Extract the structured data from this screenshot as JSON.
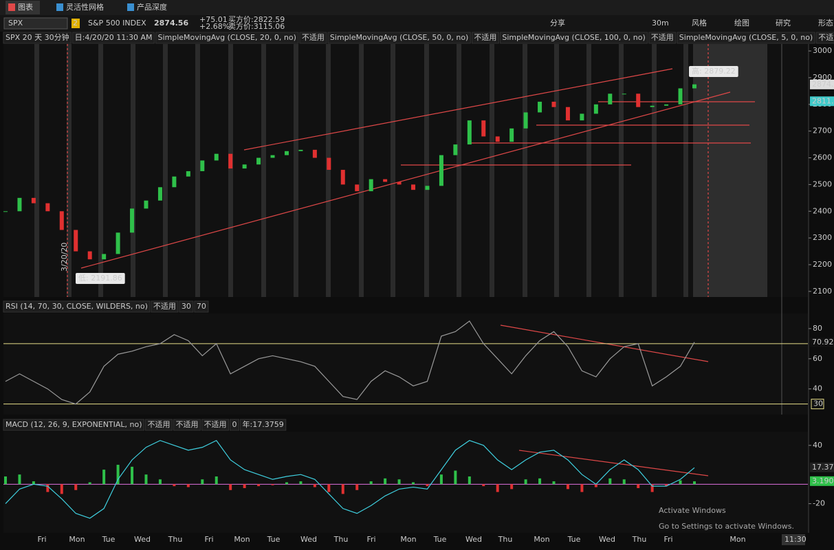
{
  "tabs": [
    "图表",
    "灵活性网格",
    "产品深度"
  ],
  "symbol_bar": {
    "symbol": "SPX",
    "link": "2",
    "name": "S&P 500 INDEX",
    "last": "2874.56",
    "change": "+75.01",
    "change_pct": "+2.68%",
    "bid": "买方价:2822.59",
    "ask": "卖方价:3115.06"
  },
  "toolbar": [
    "分享",
    "30m",
    "风格",
    "绘图",
    "研究",
    "形态"
  ],
  "price_panel": {
    "header": [
      "SPX 20 天 30分钟",
      "日:4/20/20 11:30 AM"
    ],
    "studies": [
      {
        "label": "SimpleMovingAvg (CLOSE, 20, 0, no)",
        "value": "不适用",
        "color": "#5bd3e6"
      },
      {
        "label": "SimpleMovingAvg (CLOSE, 50, 0, no)",
        "value": "不适用",
        "color": "#3fc9c9"
      },
      {
        "label": "SimpleMovingAvg (CLOSE, 100, 0, no)",
        "value": "不适用",
        "color": "#ffffff"
      },
      {
        "label": "SimpleMovingAvg (CLOSE, 5, 0, no)",
        "value": "不适用",
        "color": "#3fc9c9"
      }
    ],
    "ylim": [
      2079,
      3026
    ],
    "yticks": [
      2100,
      2200,
      2300,
      2400,
      2500,
      2600,
      2700,
      2800,
      2900,
      3000
    ],
    "closes": [
      2400,
      2450,
      2430,
      2400,
      2330,
      2250,
      2220,
      2240,
      2320,
      2410,
      2440,
      2490,
      2530,
      2550,
      2590,
      2615,
      2560,
      2575,
      2600,
      2610,
      2625,
      2630,
      2600,
      2555,
      2500,
      2475,
      2520,
      2510,
      2500,
      2480,
      2495,
      2610,
      2650,
      2740,
      2680,
      2660,
      2710,
      2770,
      2810,
      2790,
      2740,
      2765,
      2800,
      2840,
      2840,
      2790,
      2795,
      2800,
      2860,
      2875
    ],
    "last_marker": 2874.56,
    "sma_marker": 2811.7,
    "high_label": "高: 2879.22",
    "low_label": "低: 2191.86",
    "date_mark": "3/20/20"
  },
  "rsi_panel": {
    "header": "RSI (14, 70, 30, CLOSE, WILDERS, no)",
    "tags": [
      {
        "text": "不适用",
        "color": "#3fd0e0"
      },
      {
        "text": "30",
        "color": "#f0e68c"
      },
      {
        "text": "70",
        "color": "#f0e68c"
      }
    ],
    "ylim": [
      23,
      90
    ],
    "yticks": [
      40,
      60,
      80
    ],
    "levels": [
      30,
      70
    ],
    "values": [
      45,
      50,
      45,
      40,
      33,
      30,
      38,
      55,
      63,
      65,
      68,
      70,
      76,
      72,
      62,
      70,
      50,
      55,
      60,
      62,
      60,
      58,
      55,
      45,
      35,
      33,
      45,
      52,
      48,
      42,
      45,
      75,
      78,
      85,
      70,
      60,
      50,
      62,
      72,
      78,
      68,
      52,
      48,
      60,
      68,
      70,
      42,
      48,
      55,
      71
    ],
    "last_marker": 70.92
  },
  "macd_panel": {
    "header": "MACD (12, 26, 9, EXPONENTIAL, no)",
    "tags": [
      {
        "text": "不适用",
        "color": "#3fd0e0"
      },
      {
        "text": "不适用",
        "color": "#f0e68c"
      },
      {
        "text": "不适用",
        "color": "#ff6060"
      },
      {
        "text": "0",
        "color": "#e070e0"
      },
      {
        "text": "年:17.3759",
        "color": "#cccccc"
      }
    ],
    "ylim": [
      -50,
      54
    ],
    "yticks": [
      -20,
      40
    ],
    "values": [
      -20,
      -5,
      0,
      -2,
      -15,
      -30,
      -35,
      -25,
      5,
      25,
      38,
      45,
      40,
      35,
      38,
      45,
      25,
      15,
      10,
      5,
      8,
      10,
      5,
      -10,
      -25,
      -30,
      -22,
      -12,
      -5,
      -3,
      -5,
      15,
      35,
      45,
      40,
      25,
      15,
      25,
      33,
      35,
      25,
      10,
      0,
      15,
      25,
      15,
      -2,
      -2,
      5,
      17
    ],
    "histogram": [
      8,
      10,
      3,
      -8,
      -10,
      -6,
      2,
      15,
      20,
      18,
      10,
      5,
      -2,
      -3,
      5,
      8,
      -6,
      -4,
      -2,
      -1,
      2,
      3,
      -3,
      -8,
      -10,
      -6,
      3,
      6,
      5,
      2,
      -2,
      10,
      14,
      8,
      -2,
      -8,
      -5,
      5,
      6,
      3,
      -5,
      -8,
      -3,
      6,
      5,
      -4,
      -8,
      -2,
      4,
      3
    ],
    "markers": [
      17.3759,
      3.1904
    ]
  },
  "x_axis": [
    "Fri",
    "Mon",
    "Tue",
    "Wed",
    "Thu",
    "Fri",
    "Mon",
    "Tue",
    "Wed",
    "Thu",
    "Fri",
    "Mon",
    "Tue",
    "Wed",
    "Thu",
    "Mon",
    "Tue",
    "Wed",
    "Thu",
    "Fri",
    "Mon"
  ],
  "time_label": "11:30",
  "watermark": [
    "Activate Windows",
    "Go to Settings to activate Windows."
  ]
}
